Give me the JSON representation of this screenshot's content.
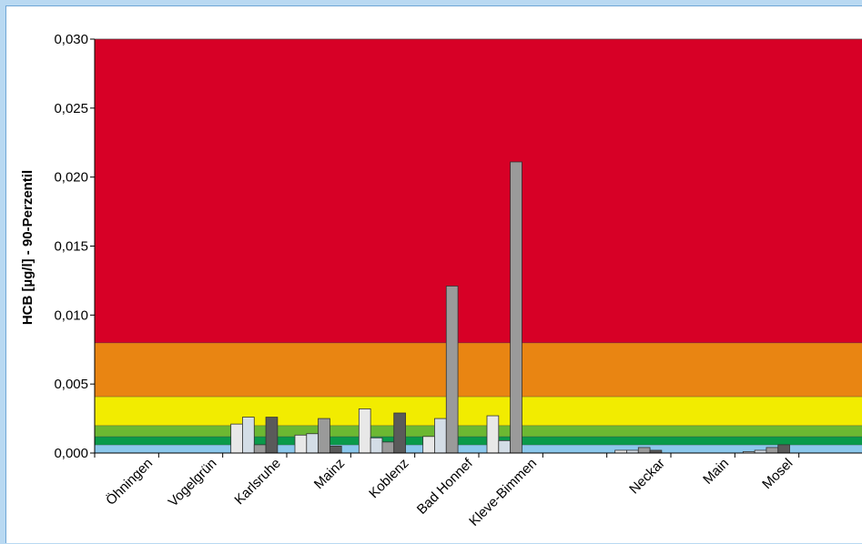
{
  "chart_data": {
    "type": "bar",
    "ylabel": "HCB [µg/l] - 90-Perzentil",
    "ylim": [
      0,
      0.03
    ],
    "ytick_values": [
      0,
      0.005,
      0.01,
      0.015,
      0.02,
      0.025,
      0.03
    ],
    "ytick_labels": [
      "0,000",
      "0,005",
      "0,010",
      "0,015",
      "0,020",
      "0,025",
      "0,030"
    ],
    "grid": false,
    "legend": "none",
    "categories": [
      "Öhningen",
      "Vogelgrün",
      "Karlsruhe",
      "Mainz",
      "Koblenz",
      "Bad Honnef",
      "Kleve-Bimmen",
      "",
      "Neckar",
      "Main",
      "Mosel",
      ""
    ],
    "bar_colors": [
      "#e8e8e8",
      "#d3dde6",
      "#9a9a9a",
      "#5a5a5a"
    ],
    "bars": [
      {
        "category": 2,
        "slot": 0,
        "value": 0.0021
      },
      {
        "category": 2,
        "slot": 1,
        "value": 0.0026
      },
      {
        "category": 2,
        "slot": 2,
        "value": 0.0006
      },
      {
        "category": 2,
        "slot": 3,
        "value": 0.0026
      },
      {
        "category": 3,
        "slot": 0,
        "value": 0.0013
      },
      {
        "category": 3,
        "slot": 1,
        "value": 0.0014
      },
      {
        "category": 3,
        "slot": 2,
        "value": 0.0025
      },
      {
        "category": 3,
        "slot": 3,
        "value": 0.0005
      },
      {
        "category": 4,
        "slot": 0,
        "value": 0.0032
      },
      {
        "category": 4,
        "slot": 1,
        "value": 0.0011
      },
      {
        "category": 4,
        "slot": 2,
        "value": 0.0008
      },
      {
        "category": 4,
        "slot": 3,
        "value": 0.0029
      },
      {
        "category": 5,
        "slot": 0,
        "value": 0.0012
      },
      {
        "category": 5,
        "slot": 1,
        "value": 0.0025
      },
      {
        "category": 5,
        "slot": 2,
        "value": 0.0121
      },
      {
        "category": 6,
        "slot": 0,
        "value": 0.0027
      },
      {
        "category": 6,
        "slot": 1,
        "value": 0.0009
      },
      {
        "category": 6,
        "slot": 2,
        "value": 0.0211
      },
      {
        "category": 8,
        "slot": 0,
        "value": 0.0002
      },
      {
        "category": 8,
        "slot": 1,
        "value": 0.0002
      },
      {
        "category": 8,
        "slot": 2,
        "value": 0.0004
      },
      {
        "category": 8,
        "slot": 3,
        "value": 0.0002
      },
      {
        "category": 10,
        "slot": 0,
        "value": 0.0001
      },
      {
        "category": 10,
        "slot": 1,
        "value": 0.0002
      },
      {
        "category": 10,
        "slot": 2,
        "value": 0.0004
      },
      {
        "category": 10,
        "slot": 3,
        "value": 0.0006
      }
    ],
    "bands": [
      {
        "from": 0,
        "to": 0.0006,
        "color": "#8cc8ec"
      },
      {
        "from": 0.0006,
        "to": 0.0012,
        "color": "#0a9a4a"
      },
      {
        "from": 0.0012,
        "to": 0.002,
        "color": "#6cb832"
      },
      {
        "from": 0.002,
        "to": 0.0041,
        "color": "#f2ec00"
      },
      {
        "from": 0.0041,
        "to": 0.008,
        "color": "#e98512"
      },
      {
        "from": 0.008,
        "to": 0.03,
        "color": "#d70026"
      }
    ]
  }
}
